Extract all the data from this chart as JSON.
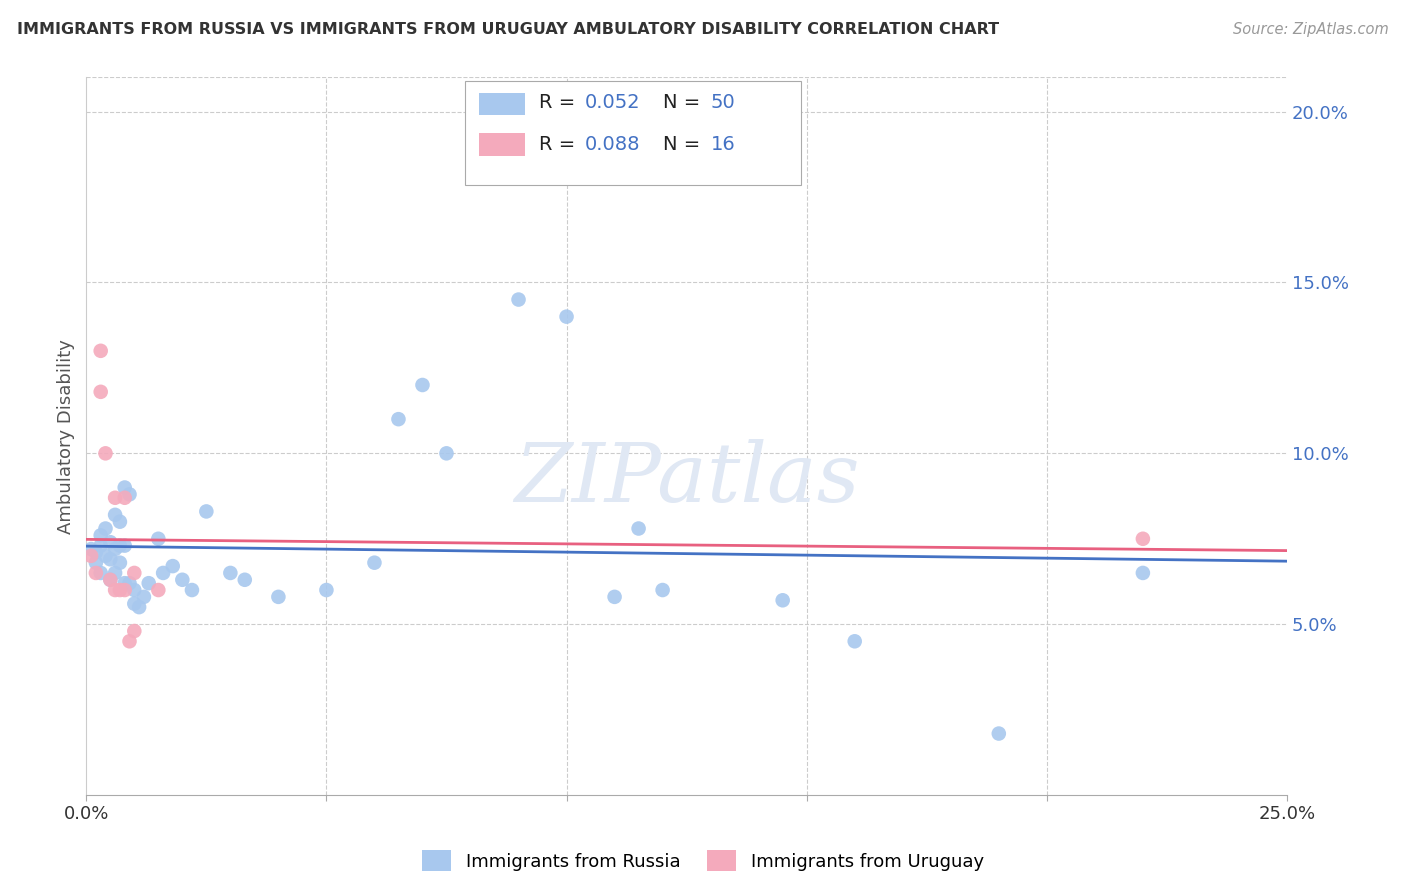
{
  "title": "IMMIGRANTS FROM RUSSIA VS IMMIGRANTS FROM URUGUAY AMBULATORY DISABILITY CORRELATION CHART",
  "source": "Source: ZipAtlas.com",
  "ylabel": "Ambulatory Disability",
  "xlim": [
    0.0,
    0.25
  ],
  "ylim": [
    0.0,
    0.21
  ],
  "russia_R": 0.052,
  "russia_N": 50,
  "uruguay_R": 0.088,
  "uruguay_N": 16,
  "russia_color": "#A8C8EE",
  "uruguay_color": "#F4AABC",
  "russia_line_color": "#4472C4",
  "uruguay_line_color": "#E86080",
  "legend_text_color": "#4472C4",
  "right_axis_color": "#4472C4",
  "russia_x": [
    0.001,
    0.002,
    0.002,
    0.003,
    0.003,
    0.003,
    0.004,
    0.004,
    0.005,
    0.005,
    0.005,
    0.006,
    0.006,
    0.006,
    0.007,
    0.007,
    0.007,
    0.008,
    0.008,
    0.008,
    0.009,
    0.009,
    0.01,
    0.01,
    0.011,
    0.012,
    0.013,
    0.015,
    0.016,
    0.018,
    0.02,
    0.022,
    0.025,
    0.03,
    0.033,
    0.04,
    0.05,
    0.06,
    0.065,
    0.07,
    0.075,
    0.09,
    0.1,
    0.11,
    0.115,
    0.12,
    0.145,
    0.16,
    0.19,
    0.22
  ],
  "russia_y": [
    0.072,
    0.071,
    0.068,
    0.076,
    0.073,
    0.065,
    0.078,
    0.07,
    0.074,
    0.069,
    0.063,
    0.082,
    0.072,
    0.065,
    0.08,
    0.073,
    0.068,
    0.09,
    0.073,
    0.062,
    0.088,
    0.062,
    0.06,
    0.056,
    0.055,
    0.058,
    0.062,
    0.075,
    0.065,
    0.067,
    0.063,
    0.06,
    0.083,
    0.065,
    0.063,
    0.058,
    0.06,
    0.068,
    0.11,
    0.12,
    0.1,
    0.145,
    0.14,
    0.058,
    0.078,
    0.06,
    0.057,
    0.045,
    0.018,
    0.065
  ],
  "uruguay_x": [
    0.001,
    0.002,
    0.003,
    0.003,
    0.004,
    0.005,
    0.006,
    0.006,
    0.007,
    0.008,
    0.008,
    0.009,
    0.01,
    0.01,
    0.015,
    0.22
  ],
  "uruguay_y": [
    0.07,
    0.065,
    0.13,
    0.118,
    0.1,
    0.063,
    0.087,
    0.06,
    0.06,
    0.087,
    0.06,
    0.045,
    0.065,
    0.048,
    0.06,
    0.075
  ]
}
